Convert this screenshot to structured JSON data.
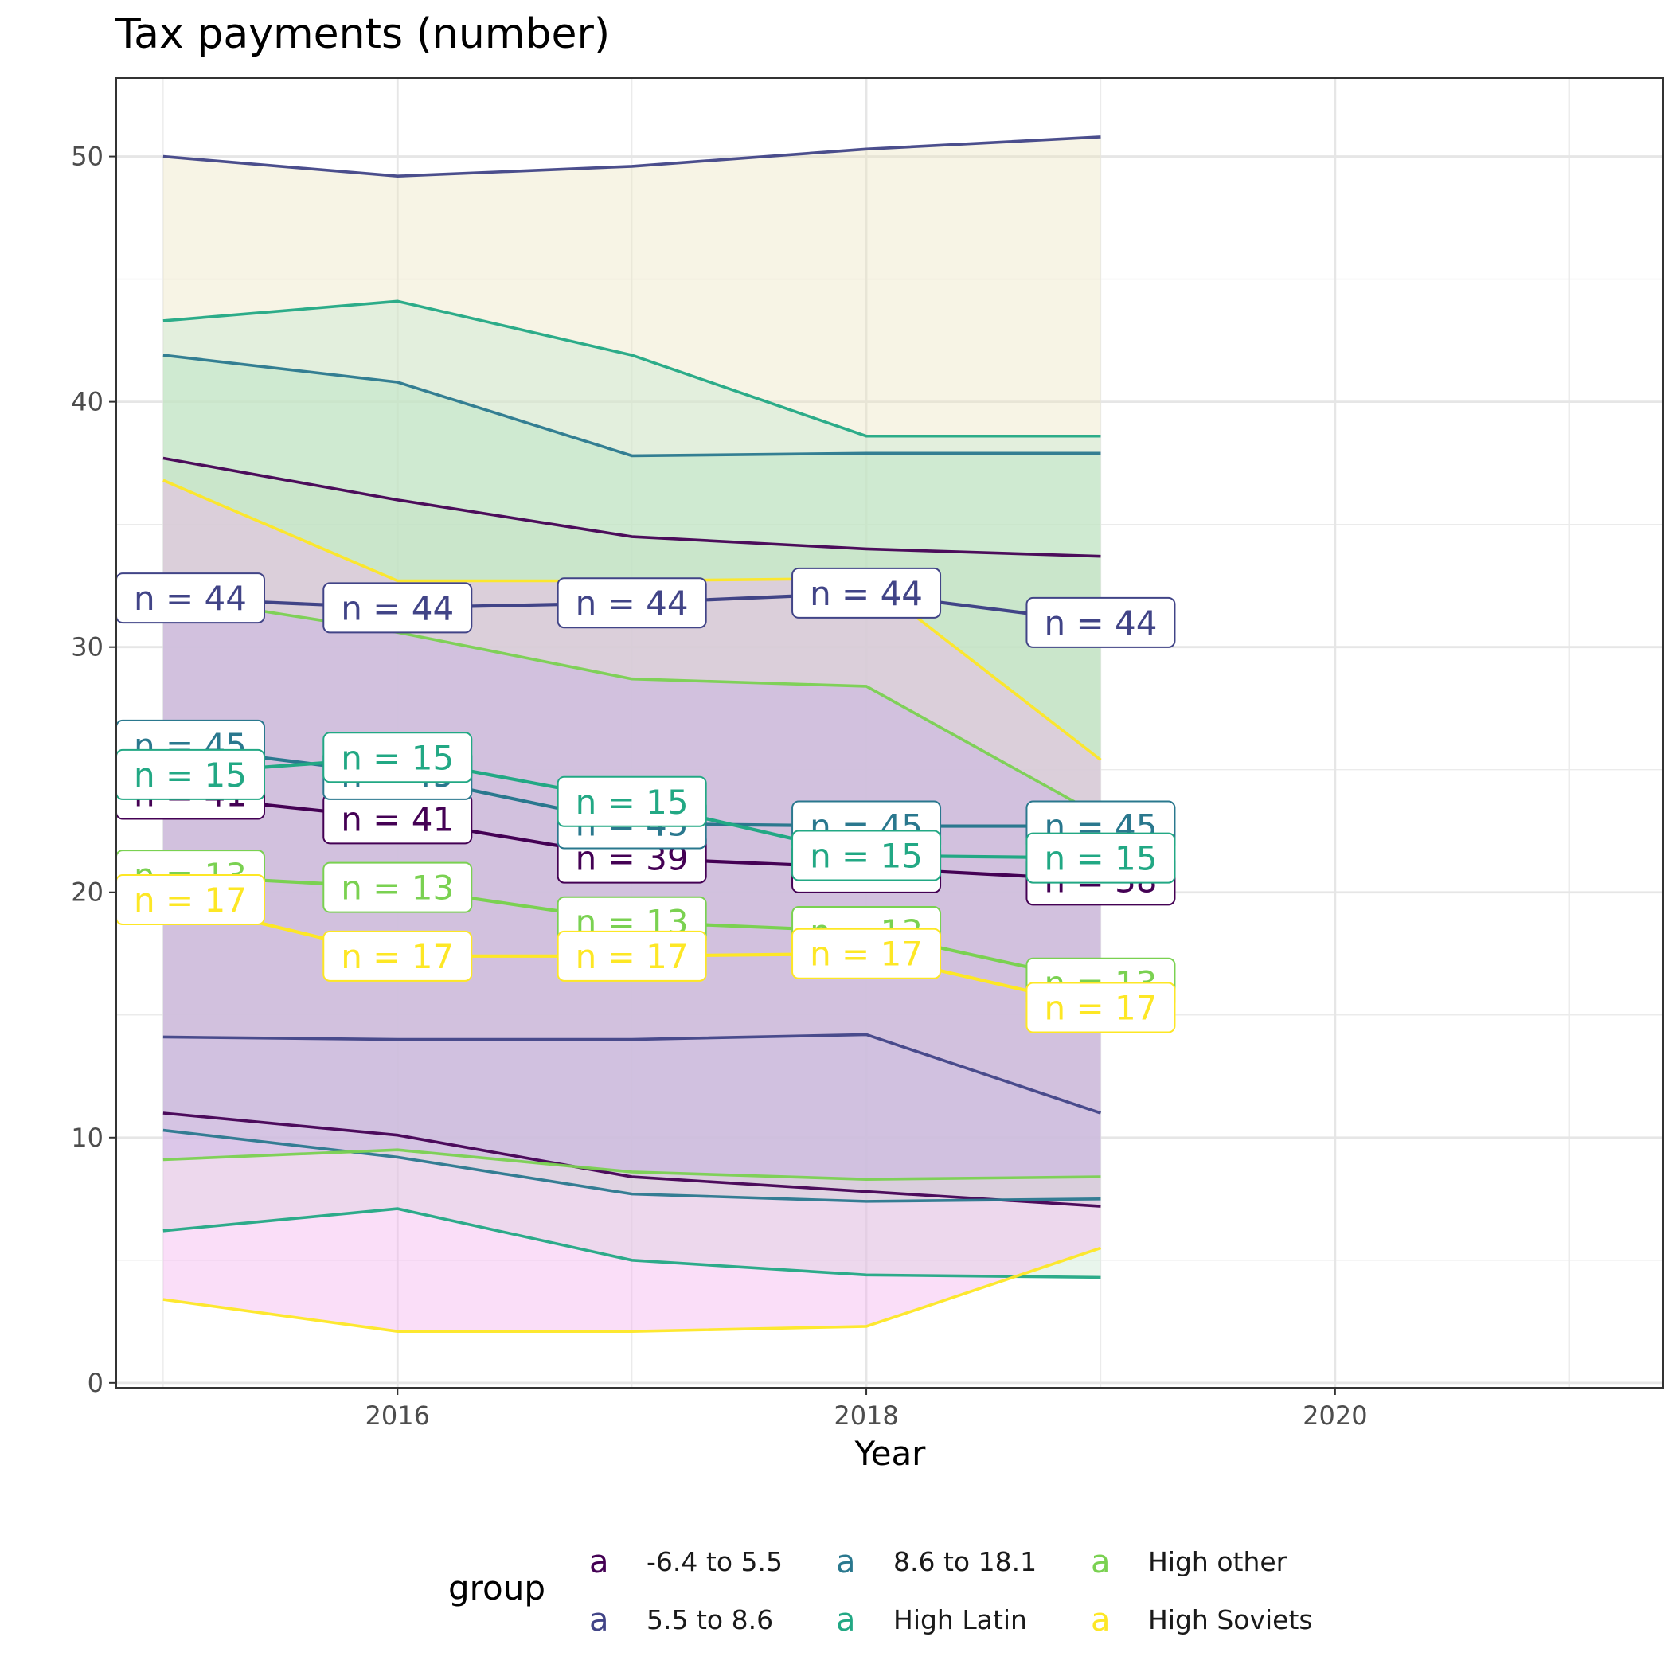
{
  "chart_data": {
    "type": "line",
    "title": "Tax payments (number)",
    "xlabel": "Year",
    "ylabel": "",
    "xlim": [
      2014.8,
      2021.4
    ],
    "ylim": [
      -0.2,
      53.2
    ],
    "x_ticks": [
      2016,
      2018,
      2020
    ],
    "y_ticks": [
      0,
      10,
      20,
      30,
      40,
      50
    ],
    "grid": true,
    "legend": {
      "title": "group",
      "position": "bottom",
      "key_glyph": "a",
      "entries": [
        "-6.4 to 5.5",
        "5.5 to 8.6",
        "8.6 to 18.1",
        "High Latin",
        "High other",
        "High Soviets"
      ]
    },
    "colors": {
      "-6.4 to 5.5": "#440154",
      "5.5 to 8.6": "#414487",
      "8.6 to 18.1": "#2A788E",
      "High Latin": "#22A884",
      "High other": "#7AD151",
      "High Soviets": "#FDE725"
    },
    "x": [
      2015,
      2016,
      2017,
      2018,
      2019
    ],
    "series": [
      {
        "name": "-6.4 to 5.5",
        "mean": [
          24.0,
          23.0,
          21.4,
          21.0,
          20.5
        ],
        "upper": [
          37.7,
          36.0,
          34.5,
          34.0,
          33.7
        ],
        "lower": [
          11.0,
          10.1,
          8.4,
          7.8,
          7.2
        ],
        "band_color": "#b8cfc0",
        "n": [
          41,
          41,
          39,
          38,
          38
        ]
      },
      {
        "name": "5.5 to 8.6",
        "mean": [
          32.0,
          31.6,
          31.8,
          32.2,
          31.0
        ],
        "upper": [
          50.0,
          49.2,
          49.6,
          50.3,
          50.8
        ],
        "lower": [
          14.1,
          14.0,
          14.0,
          14.2,
          11.0
        ],
        "band_color": "#ede4c0",
        "n": [
          44,
          44,
          44,
          44,
          44
        ]
      },
      {
        "name": "8.6 to 18.1",
        "mean": [
          26.0,
          24.8,
          22.8,
          22.7,
          22.7
        ],
        "upper": [
          41.9,
          40.8,
          37.8,
          37.9,
          37.9
        ],
        "lower": [
          10.3,
          9.2,
          7.7,
          7.4,
          7.5
        ],
        "band_color": "#a7dfb2",
        "n": [
          45,
          45,
          45,
          45,
          45
        ]
      },
      {
        "name": "High Latin",
        "mean": [
          24.8,
          25.5,
          23.7,
          21.5,
          21.4
        ],
        "upper": [
          43.3,
          44.1,
          41.9,
          38.6,
          38.6
        ],
        "lower": [
          6.2,
          7.1,
          5.0,
          4.4,
          4.3
        ],
        "band_color": "#c9e6d2",
        "n": [
          15,
          15,
          15,
          15,
          15
        ]
      },
      {
        "name": "High other",
        "mean": [
          20.7,
          20.2,
          18.8,
          18.4,
          16.3
        ],
        "upper": [
          32.1,
          30.6,
          28.7,
          28.4,
          23.1
        ],
        "lower": [
          9.1,
          9.5,
          8.6,
          8.3,
          8.4
        ],
        "band_color": "#a4aedd",
        "n": [
          13,
          13,
          13,
          13,
          13
        ]
      },
      {
        "name": "High Soviets",
        "mean": [
          19.7,
          17.4,
          17.4,
          17.5,
          15.3
        ],
        "upper": [
          36.8,
          32.7,
          32.7,
          32.8,
          25.4
        ],
        "lower": [
          3.4,
          2.1,
          2.1,
          2.3,
          5.5
        ],
        "band_color": "#f2b0ee",
        "n": [
          17,
          17,
          17,
          17,
          17
        ]
      }
    ]
  }
}
